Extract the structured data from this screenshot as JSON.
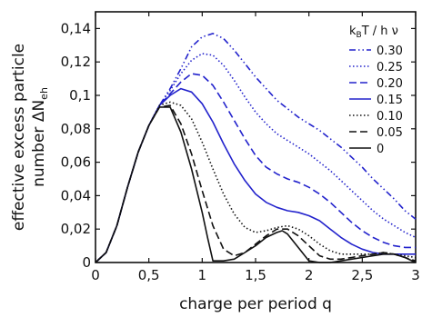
{
  "chart_data": {
    "type": "line",
    "xlabel": "charge per period  q",
    "ylabel_line1": "effective excess particle",
    "ylabel_line2": "number ΔN",
    "ylabel_subscript": "eh",
    "xlim": [
      0,
      3
    ],
    "ylim": [
      0,
      0.15
    ],
    "x_ticks": [
      "0",
      "0,5",
      "1",
      "1,5",
      "2",
      "2,5",
      "3"
    ],
    "y_ticks": [
      "0",
      "0,02",
      "0,04",
      "0,06",
      "0,08",
      "0,1",
      "0,12",
      "0,14"
    ],
    "x_tick_values": [
      0,
      0.5,
      1,
      1.5,
      2,
      2.5,
      3
    ],
    "y_tick_values": [
      0,
      0.02,
      0.04,
      0.06,
      0.08,
      0.1,
      0.12,
      0.14
    ],
    "grid": false,
    "legend": {
      "placement": "top-right",
      "title_main": "k",
      "title_sub": "B",
      "title_rest": "T / h ν"
    },
    "series": [
      {
        "name": "0.30",
        "color": "#2222cc",
        "dash": "dashdotdot",
        "x": [
          0,
          0.1,
          0.2,
          0.3,
          0.4,
          0.5,
          0.6,
          0.7,
          0.8,
          0.9,
          1.0,
          1.1,
          1.2,
          1.3,
          1.4,
          1.5,
          1.6,
          1.7,
          1.8,
          1.9,
          2.0,
          2.1,
          2.2,
          2.3,
          2.4,
          2.5,
          2.6,
          2.7,
          2.8,
          2.9,
          3.0
        ],
        "y": [
          0,
          0.006,
          0.022,
          0.045,
          0.066,
          0.082,
          0.094,
          0.104,
          0.116,
          0.129,
          0.135,
          0.137,
          0.134,
          0.127,
          0.119,
          0.111,
          0.104,
          0.097,
          0.092,
          0.087,
          0.083,
          0.079,
          0.074,
          0.069,
          0.063,
          0.057,
          0.05,
          0.044,
          0.038,
          0.031,
          0.026
        ]
      },
      {
        "name": "0.25",
        "color": "#2222cc",
        "dash": "dotted",
        "x": [
          0,
          0.1,
          0.2,
          0.3,
          0.4,
          0.5,
          0.6,
          0.7,
          0.8,
          0.9,
          1.0,
          1.1,
          1.2,
          1.3,
          1.4,
          1.5,
          1.6,
          1.7,
          1.8,
          1.9,
          2.0,
          2.1,
          2.2,
          2.3,
          2.4,
          2.5,
          2.6,
          2.7,
          2.8,
          2.9,
          3.0
        ],
        "y": [
          0,
          0.006,
          0.022,
          0.045,
          0.066,
          0.082,
          0.094,
          0.103,
          0.113,
          0.121,
          0.125,
          0.124,
          0.118,
          0.109,
          0.099,
          0.09,
          0.083,
          0.077,
          0.073,
          0.069,
          0.065,
          0.06,
          0.055,
          0.049,
          0.043,
          0.037,
          0.031,
          0.026,
          0.022,
          0.018,
          0.015
        ]
      },
      {
        "name": "0.20",
        "color": "#2222cc",
        "dash": "dashed",
        "x": [
          0,
          0.1,
          0.2,
          0.3,
          0.4,
          0.5,
          0.6,
          0.7,
          0.8,
          0.9,
          1.0,
          1.1,
          1.2,
          1.3,
          1.4,
          1.5,
          1.6,
          1.7,
          1.8,
          1.9,
          2.0,
          2.1,
          2.2,
          2.3,
          2.4,
          2.5,
          2.6,
          2.7,
          2.8,
          2.9,
          3.0
        ],
        "y": [
          0,
          0.006,
          0.022,
          0.045,
          0.066,
          0.082,
          0.094,
          0.101,
          0.108,
          0.113,
          0.112,
          0.106,
          0.096,
          0.085,
          0.074,
          0.064,
          0.057,
          0.053,
          0.05,
          0.048,
          0.045,
          0.041,
          0.036,
          0.03,
          0.024,
          0.019,
          0.015,
          0.012,
          0.01,
          0.009,
          0.009
        ]
      },
      {
        "name": "0.15",
        "color": "#2222cc",
        "dash": "solid",
        "x": [
          0,
          0.1,
          0.2,
          0.3,
          0.4,
          0.5,
          0.6,
          0.7,
          0.8,
          0.9,
          1.0,
          1.1,
          1.2,
          1.3,
          1.4,
          1.5,
          1.6,
          1.7,
          1.8,
          1.9,
          2.0,
          2.1,
          2.2,
          2.3,
          2.4,
          2.5,
          2.6,
          2.7,
          2.8,
          2.9,
          3.0
        ],
        "y": [
          0,
          0.006,
          0.022,
          0.045,
          0.066,
          0.082,
          0.094,
          0.1,
          0.104,
          0.102,
          0.095,
          0.084,
          0.071,
          0.059,
          0.049,
          0.041,
          0.036,
          0.033,
          0.031,
          0.03,
          0.028,
          0.025,
          0.02,
          0.015,
          0.011,
          0.008,
          0.006,
          0.005,
          0.005,
          0.005,
          0.005
        ]
      },
      {
        "name": "0.10",
        "color": "#111111",
        "dash": "dotted",
        "x": [
          0,
          0.1,
          0.2,
          0.3,
          0.4,
          0.5,
          0.6,
          0.7,
          0.8,
          0.9,
          1.0,
          1.1,
          1.2,
          1.3,
          1.4,
          1.5,
          1.6,
          1.7,
          1.8,
          1.9,
          2.0,
          2.1,
          2.2,
          2.3,
          2.4,
          2.5,
          2.6,
          2.7,
          2.8,
          2.9,
          3.0
        ],
        "y": [
          0,
          0.006,
          0.022,
          0.045,
          0.066,
          0.082,
          0.094,
          0.096,
          0.094,
          0.086,
          0.072,
          0.056,
          0.041,
          0.029,
          0.021,
          0.018,
          0.019,
          0.021,
          0.022,
          0.02,
          0.016,
          0.011,
          0.007,
          0.005,
          0.005,
          0.005,
          0.005,
          0.006,
          0.005,
          0.004,
          0.003
        ]
      },
      {
        "name": "0.05",
        "color": "#111111",
        "dash": "dashed",
        "x": [
          0,
          0.1,
          0.2,
          0.3,
          0.4,
          0.5,
          0.6,
          0.7,
          0.8,
          0.9,
          1.0,
          1.1,
          1.2,
          1.3,
          1.4,
          1.5,
          1.6,
          1.7,
          1.8,
          1.9,
          2.0,
          2.1,
          2.2,
          2.3,
          2.4,
          2.5,
          2.6,
          2.7,
          2.8,
          2.9,
          3.0
        ],
        "y": [
          0,
          0.006,
          0.022,
          0.045,
          0.066,
          0.082,
          0.093,
          0.094,
          0.083,
          0.065,
          0.043,
          0.022,
          0.008,
          0.004,
          0.006,
          0.011,
          0.016,
          0.02,
          0.02,
          0.016,
          0.01,
          0.004,
          0.002,
          0.002,
          0.003,
          0.004,
          0.005,
          0.006,
          0.005,
          0.003,
          0.001
        ]
      },
      {
        "name": "0",
        "color": "#111111",
        "dash": "solid",
        "x": [
          0,
          0.1,
          0.2,
          0.3,
          0.4,
          0.5,
          0.6,
          0.7,
          0.8,
          0.9,
          1.0,
          1.05,
          1.1,
          1.2,
          1.3,
          1.4,
          1.5,
          1.6,
          1.7,
          1.75,
          1.8,
          1.9,
          2.0,
          2.1,
          2.2,
          2.3,
          2.4,
          2.5,
          2.6,
          2.7,
          2.8,
          2.9,
          3.0
        ],
        "y": [
          0,
          0.006,
          0.022,
          0.045,
          0.066,
          0.082,
          0.093,
          0.093,
          0.078,
          0.056,
          0.03,
          0.015,
          0.001,
          0.001,
          0.002,
          0.006,
          0.01,
          0.015,
          0.018,
          0.019,
          0.017,
          0.009,
          0.001,
          0.0,
          0.0,
          0.001,
          0.002,
          0.003,
          0.004,
          0.005,
          0.005,
          0.003,
          0.0
        ]
      }
    ]
  }
}
